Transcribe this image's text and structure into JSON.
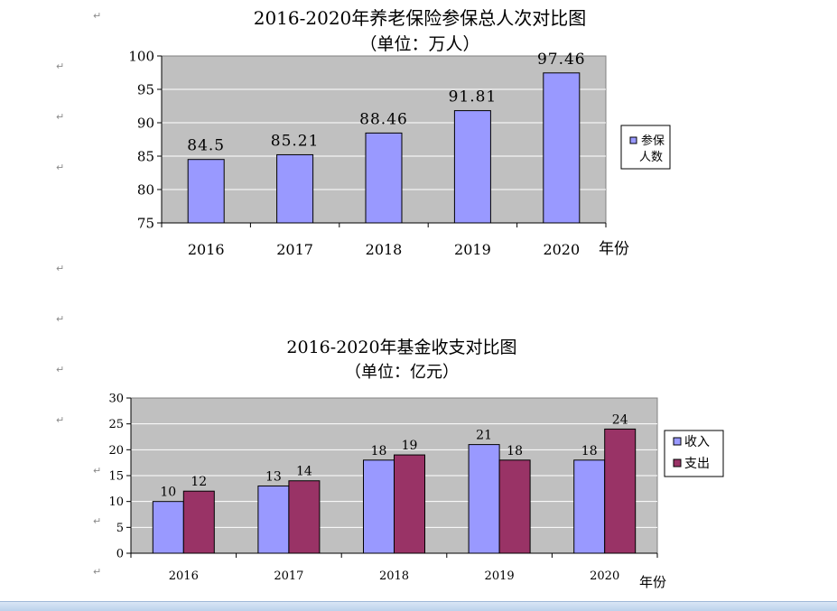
{
  "paragraph_mark": "↵",
  "charts": {
    "participants": {
      "title": "2016-2020年养老保险参保总人次对比图",
      "subtitle": "（单位：万人）",
      "legend_series": "参保\n人数",
      "x_unit": "年份"
    },
    "funds": {
      "title": "2016-2020年基金收支对比图",
      "subtitle": "（单位：亿元）",
      "x_unit": "年份"
    }
  },
  "colors": {
    "plot_bg": "#c0c0c0",
    "bar_blue": "#9999ff",
    "bar_maroon": "#993366",
    "grid": "#ffffff"
  },
  "chart_data": [
    {
      "type": "bar",
      "title": "2016-2020年养老保险参保总人次对比图",
      "subtitle": "（单位：万人）",
      "categories": [
        "2016",
        "2017",
        "2018",
        "2019",
        "2020"
      ],
      "series": [
        {
          "name": "参保人数",
          "values": [
            84.5,
            85.21,
            88.46,
            91.81,
            97.46
          ],
          "labels": [
            "84.5",
            "85.21",
            "88.46",
            "91.81",
            "97.46"
          ]
        }
      ],
      "xlabel": "年份",
      "ylim": [
        75,
        100
      ],
      "yticks": [
        75,
        80,
        85,
        90,
        95,
        100
      ],
      "grid": true,
      "legend": "right"
    },
    {
      "type": "bar",
      "title": "2016-2020年基金收支对比图",
      "subtitle": "（单位：亿元）",
      "categories": [
        "2016",
        "2017",
        "2018",
        "2019",
        "2020"
      ],
      "series": [
        {
          "name": "收入",
          "values": [
            10,
            13,
            18,
            21,
            18
          ]
        },
        {
          "name": "支出",
          "values": [
            12,
            14,
            19,
            18,
            24
          ]
        }
      ],
      "xlabel": "年份",
      "ylim": [
        0,
        30
      ],
      "yticks": [
        0,
        5,
        10,
        15,
        20,
        25,
        30
      ],
      "grid": true,
      "legend": "right"
    }
  ]
}
